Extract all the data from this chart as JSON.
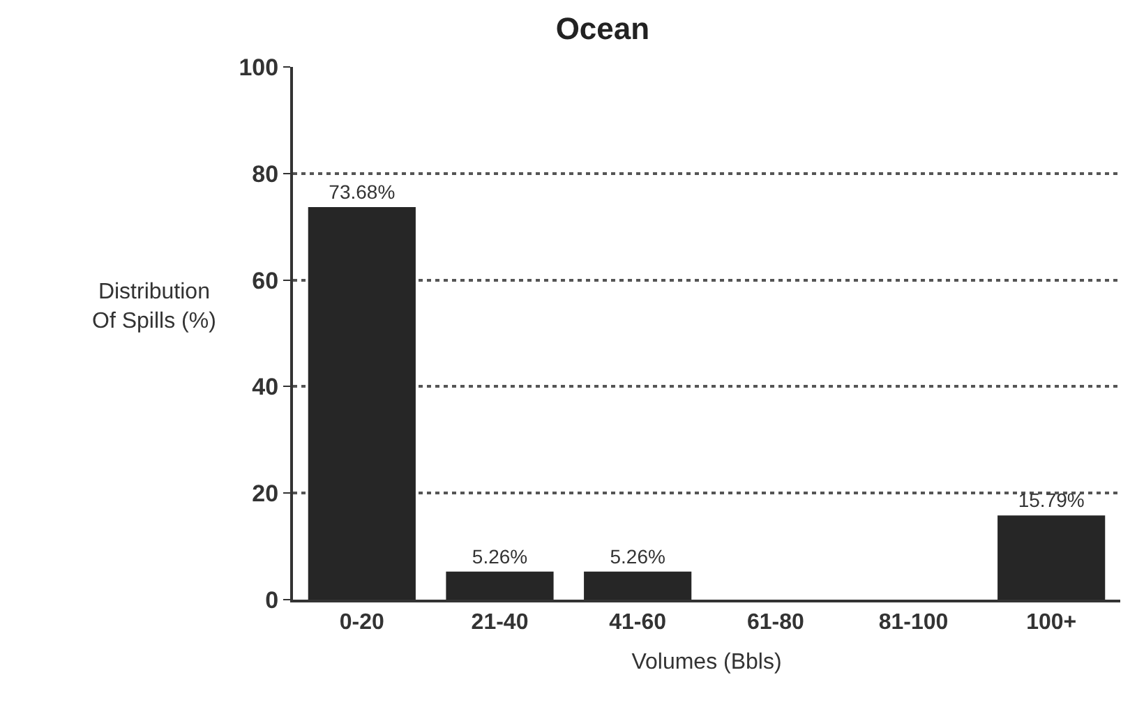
{
  "chart_data": {
    "type": "bar",
    "title": "Ocean",
    "xlabel": "Volumes (Bbls)",
    "ylabel": "Distribution\nOf Spills (%)",
    "categories": [
      "0-20",
      "21-40",
      "41-60",
      "61-80",
      "81-100",
      "100+"
    ],
    "values": [
      73.68,
      5.26,
      5.26,
      0,
      0,
      15.79
    ],
    "value_labels": [
      "73.68%",
      "5.26%",
      "5.26%",
      null,
      null,
      "15.79%"
    ],
    "color": "#262626",
    "ylim": [
      0,
      100
    ],
    "yticks": [
      0,
      20,
      40,
      60,
      80,
      100
    ],
    "grid": "y",
    "legend": false
  }
}
